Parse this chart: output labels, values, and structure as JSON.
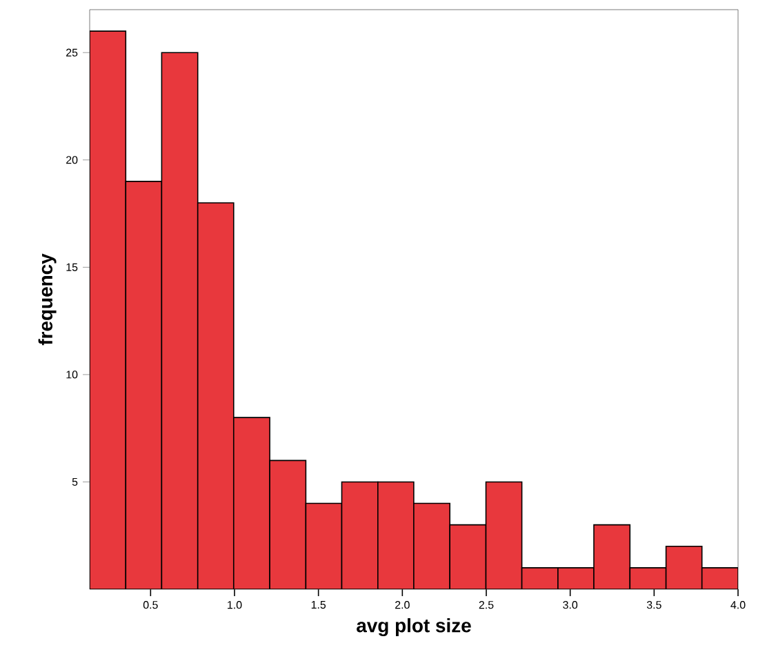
{
  "chart_data": {
    "type": "histogram",
    "xlabel": "avg plot size",
    "ylabel": "frequency",
    "color": "#e8383d",
    "bins": [
      0.137,
      0.352,
      0.566,
      0.781,
      0.995,
      1.21,
      1.425,
      1.639,
      1.854,
      2.068,
      2.283,
      2.498,
      2.712,
      2.927,
      3.141,
      3.356,
      3.571,
      3.785,
      4.0
    ],
    "values": [
      26,
      19,
      25,
      18,
      8,
      6,
      4,
      5,
      5,
      4,
      3,
      5,
      1,
      1,
      3,
      1,
      2,
      1
    ],
    "xlim": [
      0.137,
      4.0
    ],
    "ylim": [
      0,
      27
    ],
    "xticks": [
      0.5,
      {
        "value": 1,
        "label": "1.0"
      },
      1.5,
      {
        "value": 2,
        "label": "2.0"
      },
      2.5,
      {
        "value": 3,
        "label": "3.0"
      },
      3.5,
      {
        "value": 4,
        "label": "4.0"
      }
    ],
    "yticks": [
      5,
      10,
      15,
      20,
      25
    ],
    "grid": false
  }
}
